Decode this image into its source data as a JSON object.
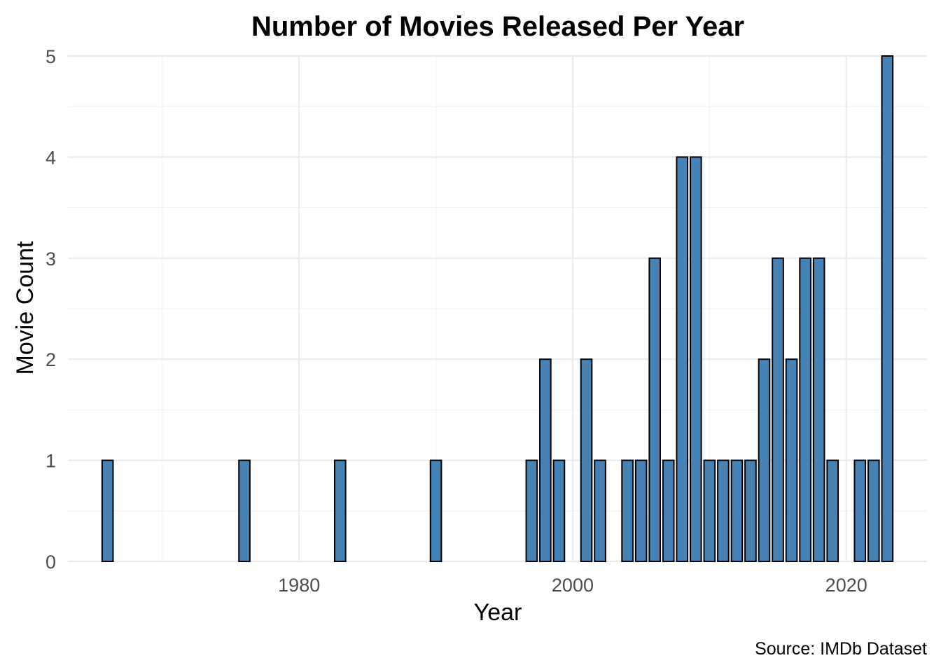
{
  "chart_data": {
    "type": "bar",
    "title": "Number of Movies Released Per Year",
    "xlabel": "Year",
    "ylabel": "Movie Count",
    "caption": "Source: IMDb Dataset",
    "x": [
      1966,
      1976,
      1983,
      1990,
      1997,
      1998,
      1999,
      2001,
      2002,
      2004,
      2005,
      2006,
      2007,
      2008,
      2009,
      2010,
      2011,
      2012,
      2013,
      2014,
      2015,
      2016,
      2017,
      2018,
      2019,
      2021,
      2022,
      2023
    ],
    "values": [
      1,
      1,
      1,
      1,
      1,
      2,
      1,
      2,
      1,
      1,
      1,
      3,
      1,
      4,
      4,
      1,
      1,
      1,
      1,
      2,
      3,
      2,
      3,
      3,
      1,
      1,
      1,
      5
    ],
    "xticks": [
      "1980",
      "2000",
      "2020"
    ],
    "xtick_values": [
      1980,
      2000,
      2020
    ],
    "yticks": [
      "0",
      "1",
      "2",
      "3",
      "4",
      "5"
    ],
    "ytick_values": [
      0,
      1,
      2,
      3,
      4,
      5
    ],
    "xlim": [
      1963.1,
      2025.9
    ],
    "ylim": [
      0,
      5
    ],
    "grid": true,
    "bar_fill": "#4682b4",
    "bar_stroke": "#000000"
  }
}
